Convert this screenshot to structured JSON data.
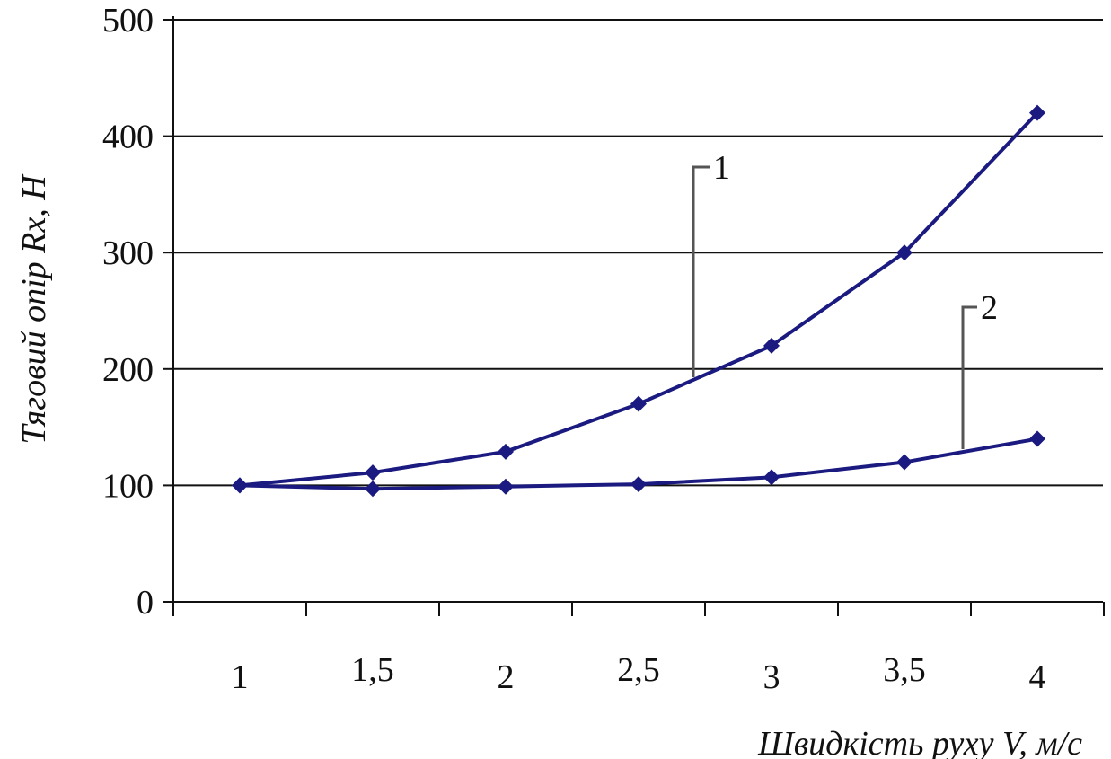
{
  "chart_data": {
    "type": "line",
    "title": "",
    "xlabel": "Швидкість руху V, м/с",
    "ylabel": "Тяговий опір Rx, Н",
    "categories": [
      "1",
      "1,5",
      "2",
      "2,5",
      "3",
      "3,5",
      "4"
    ],
    "x": [
      1,
      1.5,
      2,
      2.5,
      3,
      3.5,
      4
    ],
    "ylim": [
      0,
      500
    ],
    "yticks": [
      "0",
      "100",
      "200",
      "300",
      "400",
      "500"
    ],
    "yticks_values": [
      0,
      100,
      200,
      300,
      400,
      500
    ],
    "grid": {
      "horizontal": true,
      "vertical": false
    },
    "series": [
      {
        "label": "1",
        "values": [
          100,
          111,
          129,
          170,
          220,
          300,
          420
        ],
        "color": "#1a1a80"
      },
      {
        "label": "2",
        "values": [
          100,
          97,
          99,
          101,
          107,
          120,
          140
        ],
        "color": "#1a1a80"
      }
    ]
  }
}
